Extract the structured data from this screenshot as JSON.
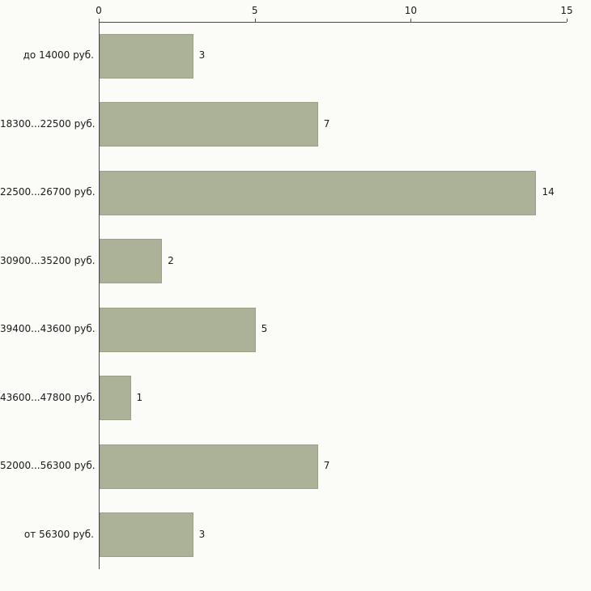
{
  "chart_data": {
    "type": "bar",
    "orientation": "horizontal",
    "title": "",
    "xlabel": "",
    "ylabel": "",
    "categories": [
      "до 14000 руб.",
      "18300...22500 руб.",
      "22500...26700 руб.",
      "30900...35200 руб.",
      "39400...43600 руб.",
      "43600...47800 руб.",
      "52000...56300 руб.",
      "от 56300 руб."
    ],
    "values": [
      3,
      7,
      14,
      2,
      5,
      1,
      7,
      3
    ],
    "value_labels": [
      "3",
      "7",
      "14",
      "2",
      "5",
      "1",
      "7",
      "3"
    ],
    "xticks": [
      0,
      5,
      10,
      15
    ],
    "xtick_labels": [
      "0",
      "5",
      "10",
      "15"
    ],
    "xlim": [
      0,
      15
    ],
    "grid": false,
    "legend": false,
    "colors": {
      "bar_fill": "#acb298",
      "bar_border": "#9aa286",
      "background": "#fbfbf7",
      "axis": "#4a4a4a",
      "text": "#1a1a1a"
    }
  }
}
